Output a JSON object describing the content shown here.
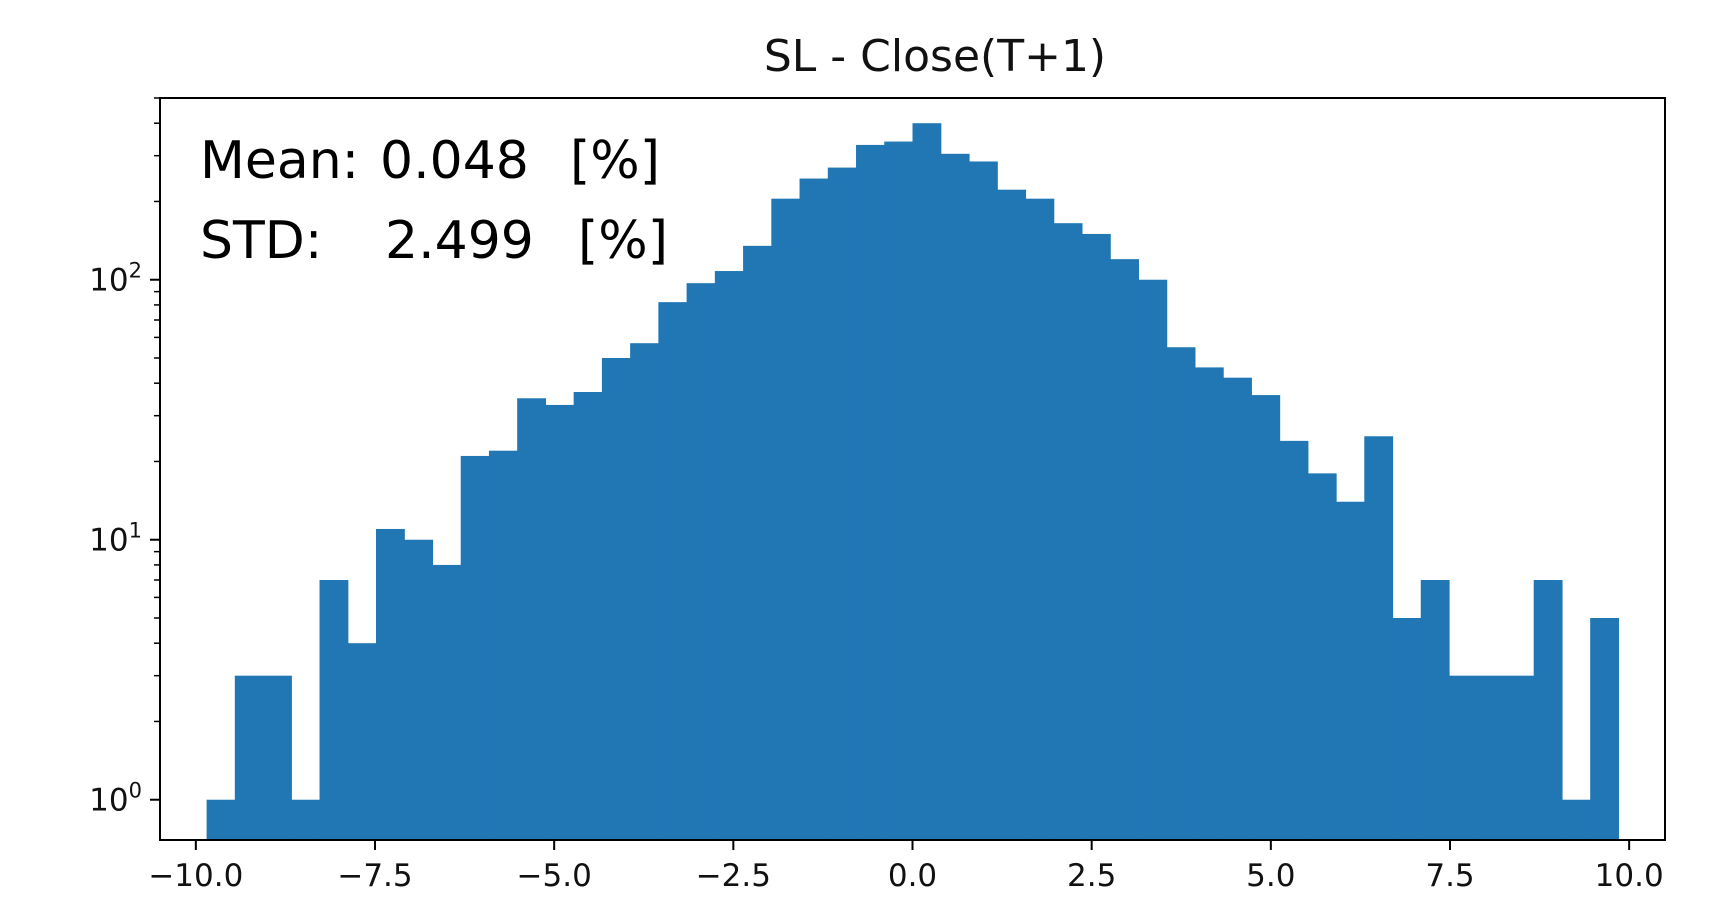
{
  "chart_data": {
    "type": "bar",
    "title": "SL - Close(T+1)",
    "xlabel": "",
    "ylabel": "",
    "xlim": [
      -10.5,
      10.5
    ],
    "ylim": [
      0.7,
      500
    ],
    "y_scale": "log",
    "grid": false,
    "color": "#2077b4",
    "xticks": [
      {
        "value": -10.0,
        "label": "−10.0"
      },
      {
        "value": -7.5,
        "label": "−7.5"
      },
      {
        "value": -5.0,
        "label": "−5.0"
      },
      {
        "value": -2.5,
        "label": "−2.5"
      },
      {
        "value": 0.0,
        "label": "0.0"
      },
      {
        "value": 2.5,
        "label": "2.5"
      },
      {
        "value": 5.0,
        "label": "5.0"
      },
      {
        "value": 7.5,
        "label": "7.5"
      },
      {
        "value": 10.0,
        "label": "10.0"
      }
    ],
    "yticks": [
      {
        "value": 1,
        "base": "10",
        "exp": "0"
      },
      {
        "value": 10,
        "base": "10",
        "exp": "1"
      },
      {
        "value": 100,
        "base": "10",
        "exp": "2"
      }
    ],
    "bins": {
      "start": -9.85,
      "width": 0.394,
      "counts": [
        1,
        3,
        3,
        1,
        7,
        4,
        11,
        10,
        8,
        21,
        22,
        35,
        33,
        37,
        50,
        57,
        82,
        97,
        108,
        135,
        205,
        245,
        270,
        330,
        340,
        400,
        305,
        285,
        222,
        205,
        165,
        150,
        120,
        100,
        55,
        46,
        42,
        36,
        24,
        18,
        14,
        25,
        5,
        7,
        3,
        3,
        3,
        7,
        1,
        5
      ]
    },
    "annotations": [
      {
        "key": "mean",
        "label": "Mean:",
        "value": "0.048",
        "unit": "[%]"
      },
      {
        "key": "std",
        "label": "STD:",
        "value": "2.499",
        "unit": "[%]"
      }
    ]
  }
}
